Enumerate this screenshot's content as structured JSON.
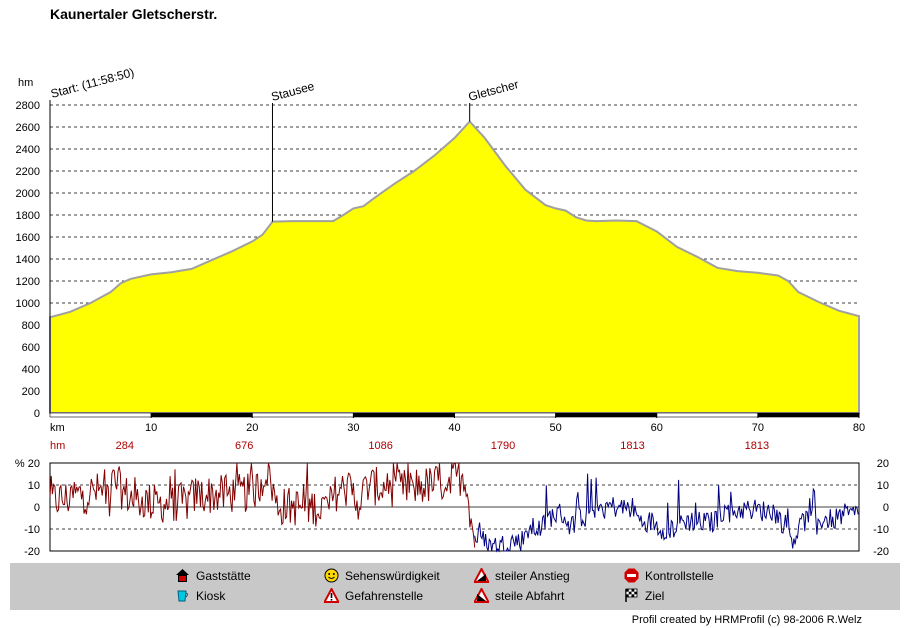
{
  "title": "Kaunertaler Gletscherstr.",
  "credit": "Profil created by HRMProfil (c) 98-2006 R.Welz",
  "chart_data": [
    {
      "type": "area",
      "title": "Kaunertaler Gletscherstr.",
      "ylabel": "hm",
      "xlabel": "km",
      "ylim": [
        0,
        2800
      ],
      "xlim": [
        0,
        80
      ],
      "yticks": [
        0,
        200,
        400,
        600,
        800,
        1000,
        1200,
        1400,
        1600,
        1800,
        2000,
        2200,
        2400,
        2600,
        2800
      ],
      "xticks": [
        10,
        20,
        30,
        40,
        50,
        60,
        70,
        80
      ],
      "grid": true,
      "fill_color": "#ffff00",
      "line_color": "#a0a0a0",
      "x": [
        0,
        2,
        4,
        6,
        7,
        8,
        10,
        12,
        14,
        16,
        18,
        20,
        21,
        22,
        24,
        26,
        28,
        29,
        30,
        31,
        32,
        34,
        36,
        38,
        40,
        41.5,
        43,
        45,
        47,
        49,
        50,
        51,
        52,
        53,
        54,
        56,
        58,
        60,
        62,
        64,
        66,
        68,
        70,
        72,
        73,
        74,
        76,
        78,
        80
      ],
      "elevation": [
        870,
        920,
        1000,
        1100,
        1180,
        1220,
        1260,
        1280,
        1310,
        1390,
        1470,
        1560,
        1620,
        1740,
        1745,
        1745,
        1745,
        1800,
        1860,
        1880,
        1950,
        2080,
        2200,
        2340,
        2500,
        2650,
        2500,
        2250,
        2030,
        1890,
        1860,
        1840,
        1780,
        1750,
        1745,
        1750,
        1745,
        1650,
        1510,
        1420,
        1320,
        1290,
        1275,
        1250,
        1200,
        1100,
        1010,
        930,
        880
      ],
      "annotations": [
        {
          "label": "Start: (11:58:50)",
          "x": 0
        },
        {
          "label": "Stausee",
          "x": 22
        },
        {
          "label": "Gletscher",
          "x": 41.5
        }
      ],
      "segment_labels": {
        "unit": "hm",
        "values": [
          {
            "x": 7.4,
            "value": "284"
          },
          {
            "x": 19.2,
            "value": "676"
          },
          {
            "x": 32.7,
            "value": "1086"
          },
          {
            "x": 44.8,
            "value": "1790"
          },
          {
            "x": 57.6,
            "value": "1813"
          },
          {
            "x": 69.9,
            "value": "1813"
          }
        ]
      }
    },
    {
      "type": "line",
      "ylabel": "%",
      "ylim": [
        -20,
        20
      ],
      "yticks": [
        -20,
        -10,
        0,
        10,
        20
      ],
      "grid": true,
      "series": [
        {
          "name": "",
          "color": "#800000",
          "x_range": [
            0,
            42
          ]
        },
        {
          "name": "",
          "color": "#000080",
          "x_range": [
            42,
            80
          ]
        }
      ]
    }
  ],
  "legend": [
    {
      "label": "Gaststätte",
      "icon": "house-icon"
    },
    {
      "label": "Sehenswürdigkeit",
      "icon": "smiley-icon"
    },
    {
      "label": "steiler Anstieg",
      "icon": "steep-climb-icon"
    },
    {
      "label": "Kontrollstelle",
      "icon": "stop-sign-icon"
    },
    {
      "label": "Kiosk",
      "icon": "cup-icon"
    },
    {
      "label": "Gefahrenstelle",
      "icon": "warning-icon"
    },
    {
      "label": "steile Abfahrt",
      "icon": "steep-descent-icon"
    },
    {
      "label": "Ziel",
      "icon": "checkered-flag-icon"
    }
  ]
}
